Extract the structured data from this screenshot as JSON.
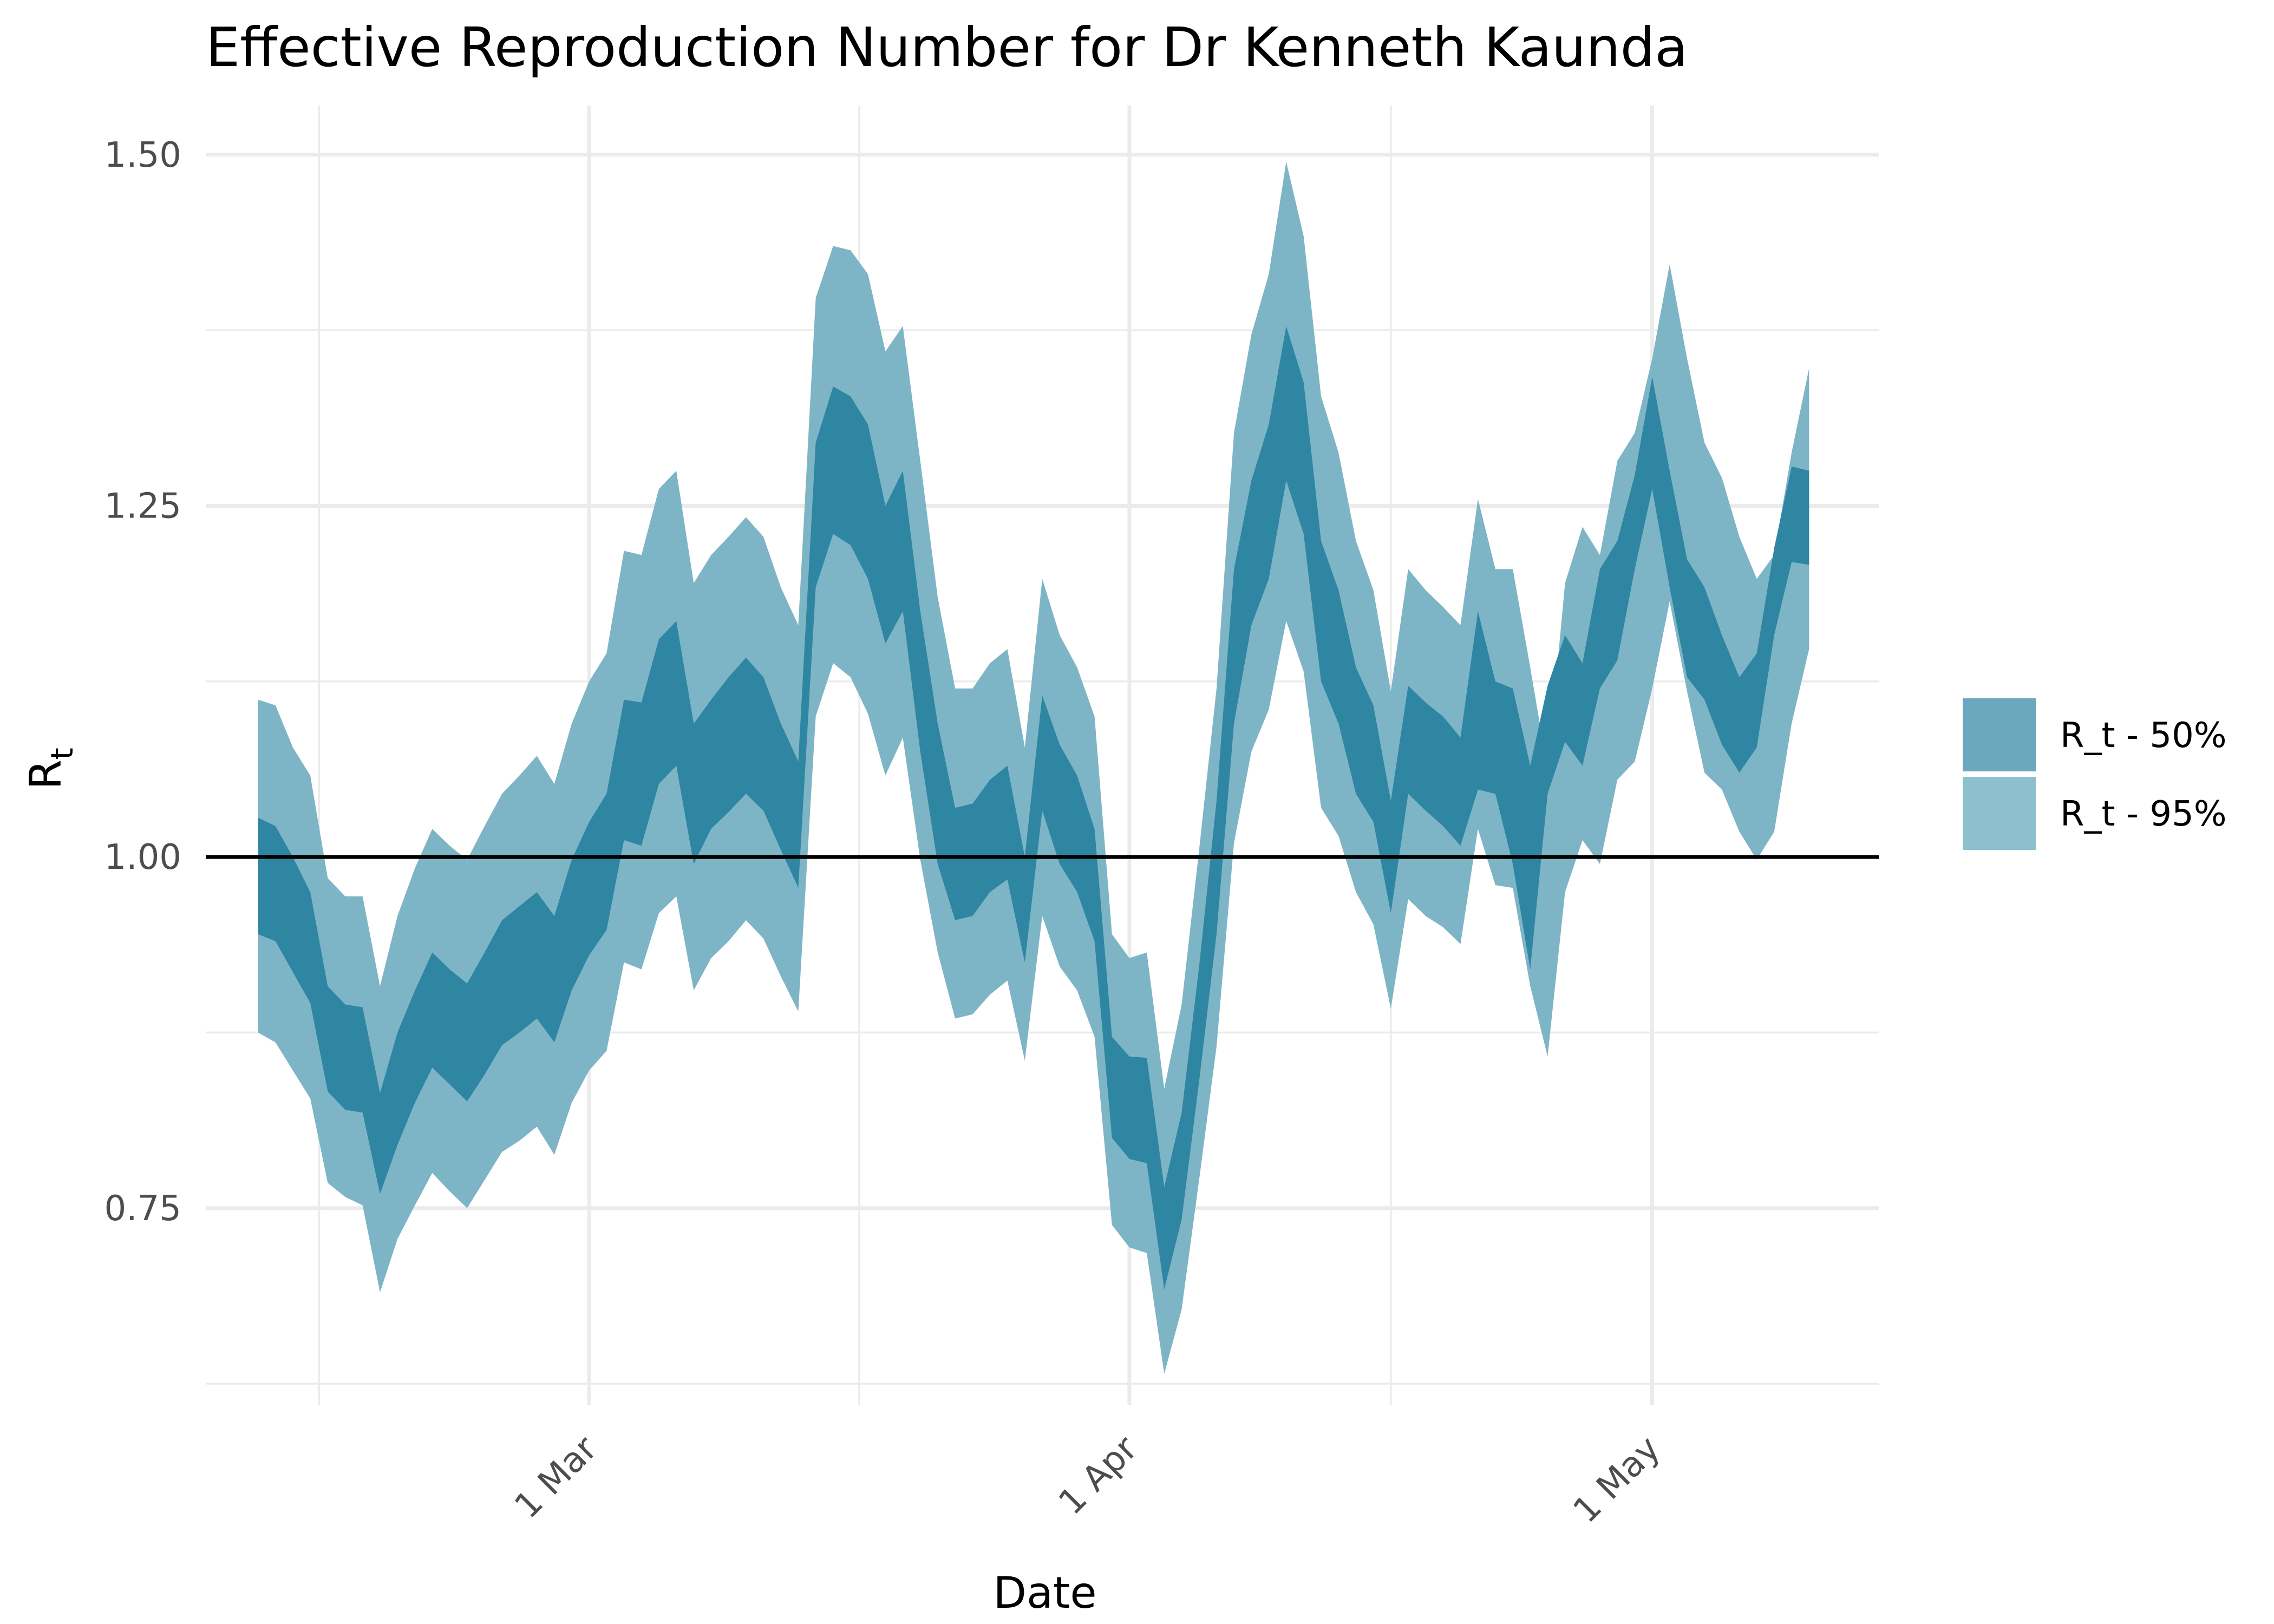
{
  "chart_data": {
    "type": "area",
    "title": "Effective Reproduction Number for Dr Kenneth Kaunda",
    "xlabel": "Date",
    "ylabel": "R",
    "ylabel_subscript": "t",
    "x_ticks": [
      "2020-03-01",
      "2020-04-01",
      "2020-05-01"
    ],
    "x_tick_labels": [
      "1 Mar",
      "1 Apr",
      "1 May"
    ],
    "y_ticks": [
      0.75,
      1.0,
      1.25,
      1.5
    ],
    "y_tick_labels": [
      "0.75",
      "1.00",
      "1.25",
      "1.50"
    ],
    "xlim": [
      "2020-02-08",
      "2020-05-14"
    ],
    "ylim": [
      0.61,
      1.535
    ],
    "reference_line": 1.0,
    "grid": true,
    "legend_position": "right",
    "colors": {
      "band50": "#2f86a3",
      "band95": "#7eb5c6",
      "legend50": "#6ba8bd",
      "legend95": "#8dbfcf",
      "reference": "#000000"
    },
    "legend": [
      {
        "label": "R_t - 50%",
        "key": "band50"
      },
      {
        "label": "R_t - 95%",
        "key": "band95"
      }
    ],
    "series": [
      {
        "name": "R_t - 50%",
        "start_date": "2020-02-11",
        "lower": [
          0.945,
          0.94,
          0.918,
          0.896,
          0.833,
          0.82,
          0.818,
          0.76,
          0.795,
          0.825,
          0.85,
          0.838,
          0.826,
          0.845,
          0.866,
          0.875,
          0.885,
          0.868,
          0.905,
          0.93,
          0.948,
          1.012,
          1.008,
          1.052,
          1.065,
          0.995,
          1.02,
          1.032,
          1.045,
          1.033,
          1.005,
          0.978,
          1.192,
          1.23,
          1.222,
          1.198,
          1.152,
          1.175,
          1.075,
          0.995,
          0.955,
          0.958,
          0.975,
          0.984,
          0.925,
          1.033,
          0.995,
          0.975,
          0.94,
          0.8,
          0.785,
          0.782,
          0.692,
          0.742,
          0.84,
          0.945,
          1.095,
          1.165,
          1.198,
          1.268,
          1.23,
          1.125,
          1.095,
          1.045,
          1.025,
          0.96,
          1.045,
          1.033,
          1.022,
          1.008,
          1.048,
          1.045,
          0.995,
          0.92,
          1.045,
          1.082,
          1.065,
          1.12,
          1.14,
          1.205,
          1.262,
          1.192,
          1.128,
          1.112,
          1.08,
          1.06,
          1.078,
          1.158,
          1.21,
          1.208
        ],
        "upper": [
          1.028,
          1.022,
          1.0,
          0.975,
          0.908,
          0.895,
          0.893,
          0.832,
          0.875,
          0.905,
          0.932,
          0.92,
          0.91,
          0.932,
          0.955,
          0.965,
          0.975,
          0.958,
          0.998,
          1.025,
          1.045,
          1.112,
          1.11,
          1.155,
          1.168,
          1.095,
          1.112,
          1.128,
          1.142,
          1.128,
          1.095,
          1.068,
          1.295,
          1.335,
          1.328,
          1.308,
          1.25,
          1.275,
          1.175,
          1.095,
          1.035,
          1.038,
          1.055,
          1.065,
          1.0,
          1.115,
          1.08,
          1.058,
          1.02,
          0.872,
          0.858,
          0.857,
          0.765,
          0.818,
          0.922,
          1.04,
          1.205,
          1.268,
          1.308,
          1.378,
          1.338,
          1.225,
          1.19,
          1.135,
          1.108,
          1.04,
          1.122,
          1.11,
          1.1,
          1.085,
          1.175,
          1.125,
          1.12,
          1.065,
          1.122,
          1.158,
          1.138,
          1.205,
          1.225,
          1.272,
          1.342,
          1.275,
          1.212,
          1.192,
          1.158,
          1.128,
          1.145,
          1.22,
          1.278,
          1.275
        ]
      },
      {
        "name": "R_t - 95%",
        "start_date": "2020-02-11",
        "lower": [
          0.875,
          0.868,
          0.848,
          0.828,
          0.768,
          0.758,
          0.752,
          0.69,
          0.728,
          0.752,
          0.775,
          0.762,
          0.75,
          0.77,
          0.79,
          0.798,
          0.808,
          0.788,
          0.825,
          0.848,
          0.862,
          0.925,
          0.92,
          0.96,
          0.972,
          0.905,
          0.928,
          0.94,
          0.955,
          0.942,
          0.915,
          0.89,
          1.1,
          1.138,
          1.128,
          1.102,
          1.058,
          1.085,
          0.998,
          0.932,
          0.885,
          0.888,
          0.902,
          0.912,
          0.855,
          0.958,
          0.922,
          0.905,
          0.872,
          0.738,
          0.722,
          0.718,
          0.632,
          0.678,
          0.77,
          0.865,
          1.01,
          1.075,
          1.105,
          1.168,
          1.132,
          1.035,
          1.015,
          0.975,
          0.952,
          0.892,
          0.97,
          0.958,
          0.95,
          0.938,
          1.02,
          0.98,
          0.978,
          0.908,
          0.858,
          0.975,
          1.012,
          0.995,
          1.055,
          1.068,
          1.12,
          1.182,
          1.118,
          1.06,
          1.048,
          1.018,
          0.998,
          1.018,
          1.095,
          1.148
        ],
        "upper": [
          1.112,
          1.108,
          1.078,
          1.058,
          0.985,
          0.972,
          0.972,
          0.908,
          0.958,
          0.992,
          1.02,
          1.008,
          0.998,
          1.022,
          1.045,
          1.058,
          1.072,
          1.052,
          1.095,
          1.125,
          1.145,
          1.218,
          1.215,
          1.262,
          1.275,
          1.195,
          1.215,
          1.228,
          1.242,
          1.228,
          1.192,
          1.165,
          1.398,
          1.435,
          1.432,
          1.415,
          1.36,
          1.378,
          1.282,
          1.185,
          1.12,
          1.12,
          1.138,
          1.148,
          1.078,
          1.198,
          1.158,
          1.135,
          1.1,
          0.945,
          0.928,
          0.932,
          0.835,
          0.895,
          1.005,
          1.12,
          1.302,
          1.372,
          1.415,
          1.495,
          1.442,
          1.328,
          1.288,
          1.225,
          1.19,
          1.118,
          1.205,
          1.19,
          1.178,
          1.165,
          1.255,
          1.205,
          1.205,
          1.135,
          1.062,
          1.195,
          1.235,
          1.215,
          1.282,
          1.302,
          1.355,
          1.422,
          1.355,
          1.295,
          1.27,
          1.228,
          1.198,
          1.215,
          1.288,
          1.348
        ]
      }
    ]
  }
}
